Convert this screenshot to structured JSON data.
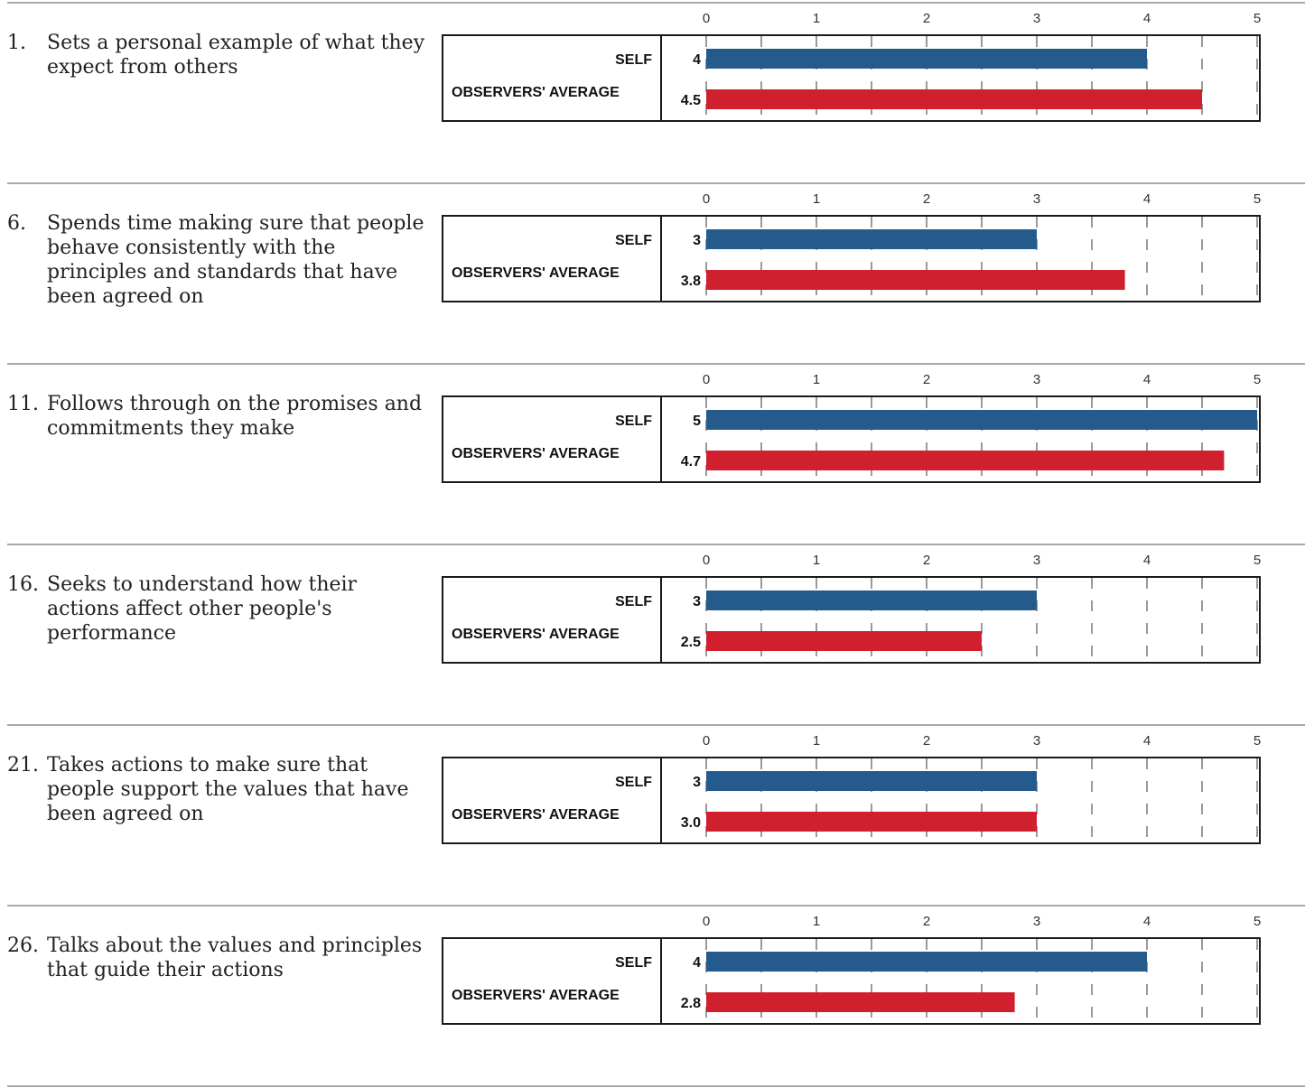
{
  "chart_data": {
    "type": "bar",
    "orientation": "horizontal",
    "xlim": [
      0,
      5
    ],
    "xticks": [
      "0",
      "1",
      "2",
      "3",
      "4",
      "5"
    ],
    "row_labels": {
      "self": "SELF",
      "observers": "OBSERVERS' AVERAGE"
    },
    "colors": {
      "self": "#245b8c",
      "observers": "#d0202e",
      "grid": "#9a9a9a",
      "divider": "#a8a8a8"
    },
    "items": [
      {
        "number": "1.",
        "statement": "Sets a personal example of what they expect from others",
        "self": 4,
        "self_label": "4",
        "observers": 4.5,
        "observers_label": "4.5"
      },
      {
        "number": "6.",
        "statement": "Spends time making sure that people behave consistently with the principles and standards that have been agreed on",
        "self": 3,
        "self_label": "3",
        "observers": 3.8,
        "observers_label": "3.8"
      },
      {
        "number": "11.",
        "statement": "Follows through on the promises and commitments they make",
        "self": 5,
        "self_label": "5",
        "observers": 4.7,
        "observers_label": "4.7"
      },
      {
        "number": "16.",
        "statement": "Seeks to understand how their actions affect other people's performance",
        "self": 3,
        "self_label": "3",
        "observers": 2.5,
        "observers_label": "2.5"
      },
      {
        "number": "21.",
        "statement": "Takes actions to make sure that people support the values that have been agreed on",
        "self": 3,
        "self_label": "3",
        "observers": 3.0,
        "observers_label": "3.0"
      },
      {
        "number": "26.",
        "statement": "Talks about the values and principles that guide their actions",
        "self": 4,
        "self_label": "4",
        "observers": 2.8,
        "observers_label": "2.8"
      }
    ]
  }
}
